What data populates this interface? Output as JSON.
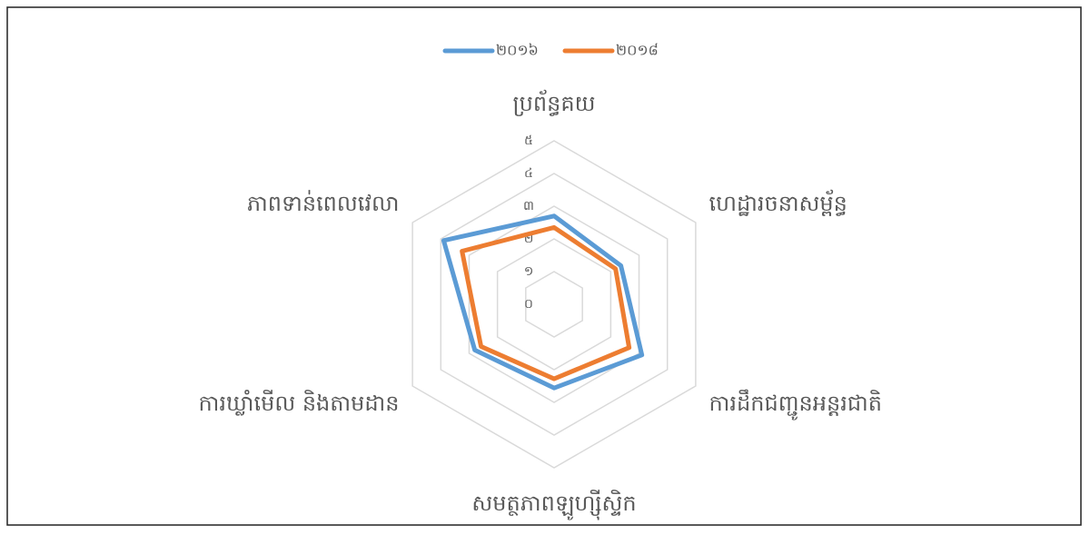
{
  "chart_data": {
    "type": "radar",
    "categories": [
      "ប្រព័ន្ធគយ",
      "ហេដ្ឋារចនាសម្ព័ន្ធ",
      "ការដឹកជញ្ជូនអន្តរជាតិ",
      "សមត្ថភាពឡូហ្ស៊ីស្ទិក",
      "ការឃ្លាំមើល និងតាមដាន",
      "ភាពទាន់ពេលវេលា"
    ],
    "series": [
      {
        "name": "២០១៦",
        "color": "#5b9bd5",
        "values": [
          2.7,
          2.36,
          3.1,
          2.56,
          2.8,
          3.9
        ]
      },
      {
        "name": "២០១៨",
        "color": "#ed7d31",
        "values": [
          2.35,
          2.17,
          2.65,
          2.28,
          2.58,
          3.25
        ]
      }
    ],
    "ylim": [
      0,
      5
    ],
    "yticks": [
      {
        "value": 0,
        "label": "០"
      },
      {
        "value": 1,
        "label": "១"
      },
      {
        "value": 2,
        "label": "២"
      },
      {
        "value": 3,
        "label": "៣"
      },
      {
        "value": 4,
        "label": "៤"
      },
      {
        "value": 5,
        "label": "៥"
      }
    ],
    "grid": true,
    "legend": "top"
  }
}
